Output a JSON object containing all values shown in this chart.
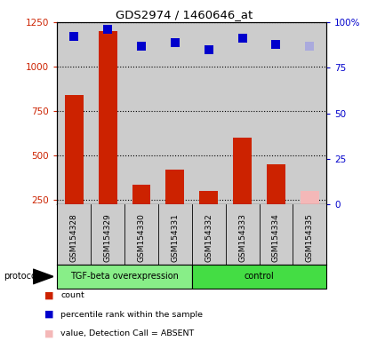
{
  "title": "GDS2974 / 1460646_at",
  "samples": [
    "GSM154328",
    "GSM154329",
    "GSM154330",
    "GSM154331",
    "GSM154332",
    "GSM154333",
    "GSM154334",
    "GSM154335"
  ],
  "counts": [
    840,
    1200,
    335,
    420,
    300,
    600,
    450,
    null
  ],
  "counts_absent": [
    null,
    null,
    null,
    null,
    null,
    null,
    null,
    300
  ],
  "percentile_ranks": [
    92,
    96,
    87,
    89,
    85,
    91,
    88,
    null
  ],
  "percentile_ranks_absent": [
    null,
    null,
    null,
    null,
    null,
    null,
    null,
    87
  ],
  "bar_color": "#cc2200",
  "bar_color_absent": "#f4b8b8",
  "dot_color": "#0000cc",
  "dot_color_absent": "#aaaadd",
  "ylim_left": [
    225,
    1250
  ],
  "ylim_right": [
    0,
    100
  ],
  "yticks_left": [
    250,
    500,
    750,
    1000,
    1250
  ],
  "yticks_right": [
    0,
    25,
    50,
    75,
    100
  ],
  "ytick_right_labels": [
    "0",
    "25",
    "50",
    "75",
    "100%"
  ],
  "groups": [
    {
      "label": "TGF-beta overexpression",
      "indices": [
        0,
        1,
        2,
        3
      ],
      "color": "#88ee88"
    },
    {
      "label": "control",
      "indices": [
        4,
        5,
        6,
        7
      ],
      "color": "#44dd44"
    }
  ],
  "protocol_label": "protocol",
  "background_color": "#cccccc",
  "dot_size": 55,
  "bar_width": 0.55
}
